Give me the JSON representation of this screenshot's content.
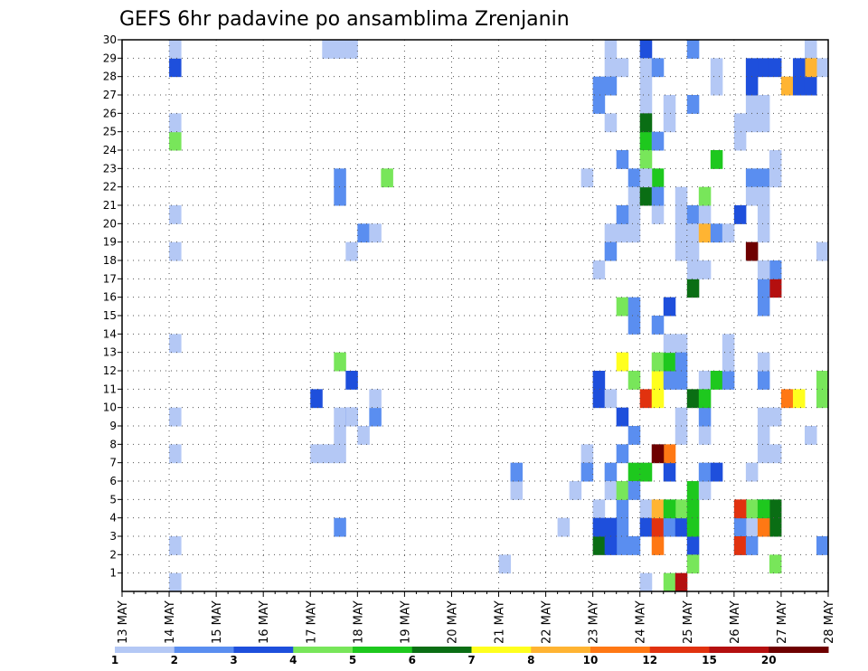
{
  "chart_data": {
    "type": "heatmap",
    "title": "GEFS 6hr padavine po ansamblima Zrenjanin",
    "xlabel": "",
    "ylabel": "",
    "x_range": [
      "13 MAY 00z",
      "28 MAY 00z"
    ],
    "x_step_hours": 6,
    "x_ticks": [
      "13 MAY",
      "14 MAY",
      "15 MAY",
      "16 MAY",
      "17 MAY",
      "18 MAY",
      "19 MAY",
      "20 MAY",
      "21 MAY",
      "22 MAY",
      "23 MAY",
      "24 MAY",
      "25 MAY",
      "26 MAY",
      "27 MAY",
      "28 MAY"
    ],
    "y_ticks": [
      1,
      2,
      3,
      4,
      5,
      6,
      7,
      8,
      9,
      10,
      11,
      12,
      13,
      14,
      15,
      16,
      17,
      18,
      19,
      20,
      21,
      22,
      23,
      24,
      25,
      26,
      27,
      28,
      29,
      30
    ],
    "ylim": [
      0,
      30
    ],
    "grid": true,
    "legend": {
      "placement": "bottom",
      "labels": [
        "1",
        "2",
        "3",
        "4",
        "5",
        "6",
        "7",
        "8",
        "10",
        "12",
        "15",
        "20"
      ],
      "colors": [
        "#b4c8f5",
        "#5a8ef0",
        "#1e4fdc",
        "#78e65a",
        "#1ec81e",
        "#0a6e14",
        "#ffff1e",
        "#ffb432",
        "#ff7814",
        "#e1320f",
        "#b40f0f",
        "#6e0000"
      ]
    },
    "cell_note": "each cell: member, day offset from 13 MAY 00z, 6h step index, category index into legend colors (0 = 1-2 mm)",
    "cells": [
      [
        0,
        1,
        0,
        0
      ],
      [
        2,
        1,
        0,
        0
      ],
      [
        7,
        1,
        0,
        0
      ],
      [
        9,
        1,
        0,
        0
      ],
      [
        13,
        1,
        0,
        0
      ],
      [
        18,
        1,
        0,
        0
      ],
      [
        20,
        1,
        0,
        0
      ],
      [
        24,
        1,
        0,
        3
      ],
      [
        25,
        1,
        0,
        0
      ],
      [
        28,
        1,
        0,
        2
      ],
      [
        29,
        1,
        0,
        0
      ],
      [
        7,
        4,
        0,
        0
      ],
      [
        7,
        4,
        1,
        0
      ],
      [
        10,
        4,
        0,
        2
      ],
      [
        9,
        4,
        2,
        0
      ],
      [
        8,
        4,
        2,
        0
      ],
      [
        3,
        4,
        2,
        1
      ],
      [
        7,
        4,
        2,
        0
      ],
      [
        12,
        4,
        2,
        3
      ],
      [
        9,
        4,
        3,
        2
      ],
      [
        11,
        4,
        3,
        2
      ],
      [
        9,
        4,
        3,
        0
      ],
      [
        18,
        4,
        3,
        0
      ],
      [
        21,
        4,
        2,
        1
      ],
      [
        22,
        4,
        2,
        1
      ],
      [
        29,
        4,
        3,
        0
      ],
      [
        29,
        4,
        2,
        0
      ],
      [
        29,
        4,
        1,
        0
      ],
      [
        8,
        5,
        0,
        0
      ],
      [
        9,
        5,
        1,
        1
      ],
      [
        10,
        5,
        1,
        0
      ],
      [
        19,
        5,
        0,
        1
      ],
      [
        19,
        5,
        1,
        0
      ],
      [
        22,
        5,
        2,
        3
      ],
      [
        1,
        8,
        0,
        0
      ],
      [
        5,
        8,
        1,
        0
      ],
      [
        6,
        8,
        1,
        1
      ],
      [
        3,
        9,
        1,
        0
      ],
      [
        7,
        9,
        3,
        0
      ],
      [
        22,
        9,
        3,
        0
      ],
      [
        6,
        9,
        3,
        1
      ],
      [
        5,
        9,
        2,
        0
      ],
      [
        4,
        10,
        0,
        0
      ],
      [
        19,
        10,
        1,
        0
      ],
      [
        29,
        10,
        1,
        0
      ],
      [
        28,
        10,
        2,
        0
      ],
      [
        3,
        10,
        2,
        1
      ],
      [
        2,
        10,
        2,
        1
      ],
      [
        2,
        10,
        3,
        1
      ],
      [
        8,
        10,
        3,
        1
      ],
      [
        7,
        10,
        2,
        1
      ],
      [
        6,
        10,
        1,
        1
      ],
      [
        5,
        10,
        1,
        0
      ],
      [
        4,
        10,
        2,
        1
      ],
      [
        9,
        10,
        2,
        2
      ],
      [
        22,
        10,
        3,
        1
      ],
      [
        21,
        10,
        3,
        0
      ],
      [
        20,
        10,
        3,
        0
      ],
      [
        12,
        10,
        2,
        6
      ],
      [
        14,
        10,
        3,
        1
      ],
      [
        15,
        10,
        2,
        3
      ],
      [
        18,
        10,
        1,
        1
      ],
      [
        19,
        10,
        2,
        0
      ],
      [
        19,
        10,
        3,
        0
      ],
      [
        20,
        10,
        2,
        1
      ],
      [
        25,
        10,
        1,
        0
      ],
      [
        28,
        10,
        1,
        0
      ],
      [
        27,
        10,
        0,
        1
      ],
      [
        27,
        10,
        1,
        1
      ],
      [
        26,
        10,
        0,
        1
      ],
      [
        17,
        10,
        0,
        0
      ],
      [
        5,
        10,
        2,
        3
      ],
      [
        6,
        10,
        3,
        4
      ],
      [
        15,
        10,
        3,
        1
      ],
      [
        10,
        10,
        0,
        2
      ],
      [
        11,
        10,
        0,
        2
      ],
      [
        2,
        10,
        0,
        5
      ],
      [
        3,
        10,
        0,
        2
      ],
      [
        3,
        10,
        1,
        2
      ],
      [
        2,
        10,
        1,
        2
      ],
      [
        5,
        10,
        3,
        1
      ],
      [
        10,
        10,
        1,
        0
      ],
      [
        23,
        10,
        2,
        1
      ],
      [
        11,
        10,
        3,
        3
      ],
      [
        0,
        11,
        0,
        0
      ],
      [
        13,
        11,
        3,
        0
      ],
      [
        29,
        11,
        0,
        2
      ],
      [
        6,
        11,
        0,
        4
      ],
      [
        4,
        11,
        0,
        0
      ],
      [
        3,
        11,
        0,
        2
      ],
      [
        2,
        11,
        1,
        8
      ],
      [
        3,
        11,
        1,
        9
      ],
      [
        4,
        11,
        1,
        7
      ],
      [
        24,
        11,
        0,
        4
      ],
      [
        26,
        11,
        0,
        0
      ],
      [
        27,
        11,
        0,
        0
      ],
      [
        28,
        11,
        0,
        0
      ],
      [
        28,
        11,
        1,
        1
      ],
      [
        11,
        11,
        1,
        6
      ],
      [
        12,
        11,
        1,
        3
      ],
      [
        11,
        11,
        2,
        1
      ],
      [
        12,
        11,
        2,
        4
      ],
      [
        11,
        11,
        3,
        1
      ],
      [
        12,
        11,
        3,
        1
      ],
      [
        8,
        11,
        3,
        0
      ],
      [
        9,
        11,
        3,
        0
      ],
      [
        10,
        11,
        0,
        9
      ],
      [
        10,
        11,
        1,
        6
      ],
      [
        21,
        11,
        0,
        5
      ],
      [
        23,
        11,
        0,
        3
      ],
      [
        22,
        11,
        1,
        4
      ],
      [
        25,
        11,
        0,
        5
      ],
      [
        24,
        11,
        1,
        1
      ],
      [
        20,
        11,
        1,
        0
      ],
      [
        22,
        11,
        0,
        0
      ],
      [
        6,
        11,
        2,
        2
      ],
      [
        7,
        11,
        2,
        8
      ],
      [
        7,
        11,
        1,
        11
      ],
      [
        25,
        11,
        2,
        0
      ],
      [
        0,
        11,
        2,
        3
      ],
      [
        0,
        11,
        3,
        10
      ],
      [
        3,
        11,
        2,
        1
      ],
      [
        3,
        11,
        3,
        2
      ],
      [
        4,
        11,
        3,
        3
      ],
      [
        4,
        11,
        2,
        4
      ],
      [
        18,
        11,
        3,
        0
      ],
      [
        19,
        11,
        3,
        0
      ],
      [
        21,
        11,
        1,
        1
      ],
      [
        21,
        11,
        3,
        0
      ],
      [
        20,
        11,
        3,
        0
      ],
      [
        15,
        11,
        2,
        2
      ],
      [
        14,
        11,
        1,
        1
      ],
      [
        13,
        11,
        2,
        0
      ],
      [
        26,
        11,
        2,
        0
      ],
      [
        20,
        12,
        0,
        1
      ],
      [
        10,
        12,
        0,
        5
      ],
      [
        2,
        12,
        0,
        2
      ],
      [
        1,
        12,
        0,
        3
      ],
      [
        3,
        12,
        0,
        4
      ],
      [
        4,
        12,
        0,
        4
      ],
      [
        5,
        12,
        0,
        4
      ],
      [
        5,
        12,
        1,
        0
      ],
      [
        6,
        12,
        1,
        1
      ],
      [
        6,
        12,
        2,
        2
      ],
      [
        8,
        12,
        1,
        0
      ],
      [
        9,
        12,
        1,
        1
      ],
      [
        11,
        12,
        1,
        0
      ],
      [
        10,
        12,
        1,
        4
      ],
      [
        11,
        12,
        2,
        4
      ],
      [
        11,
        12,
        3,
        1
      ],
      [
        12,
        12,
        3,
        0
      ],
      [
        13,
        12,
        3,
        0
      ],
      [
        16,
        12,
        0,
        5
      ],
      [
        17,
        12,
        0,
        0
      ],
      [
        17,
        12,
        1,
        0
      ],
      [
        18,
        12,
        0,
        0
      ],
      [
        19,
        12,
        0,
        0
      ],
      [
        20,
        12,
        1,
        0
      ],
      [
        19,
        12,
        1,
        7
      ],
      [
        19,
        12,
        2,
        1
      ],
      [
        19,
        12,
        3,
        0
      ],
      [
        21,
        12,
        1,
        3
      ],
      [
        23,
        12,
        2,
        4
      ],
      [
        26,
        12,
        0,
        1
      ],
      [
        27,
        12,
        2,
        0
      ],
      [
        28,
        12,
        2,
        0
      ],
      [
        29,
        12,
        0,
        1
      ],
      [
        2,
        13,
        0,
        1
      ],
      [
        3,
        13,
        1,
        0
      ],
      [
        6,
        13,
        1,
        0
      ],
      [
        7,
        13,
        2,
        0
      ],
      [
        7,
        13,
        3,
        0
      ],
      [
        8,
        13,
        2,
        0
      ],
      [
        9,
        13,
        2,
        0
      ],
      [
        9,
        13,
        3,
        0
      ],
      [
        16,
        13,
        3,
        10
      ],
      [
        20,
        13,
        0,
        2
      ],
      [
        22,
        13,
        1,
        1
      ],
      [
        22,
        13,
        2,
        1
      ],
      [
        4,
        13,
        2,
        2
      ],
      [
        4,
        13,
        1,
        3
      ],
      [
        4,
        13,
        3,
        5
      ],
      [
        3,
        13,
        3,
        5
      ],
      [
        3,
        13,
        2,
        8
      ],
      [
        1,
        13,
        3,
        3
      ],
      [
        21,
        13,
        1,
        0
      ],
      [
        25,
        13,
        1,
        0
      ],
      [
        26,
        13,
        1,
        0
      ],
      [
        24,
        13,
        0,
        0
      ],
      [
        25,
        13,
        0,
        0
      ],
      [
        27,
        13,
        1,
        2
      ],
      [
        28,
        13,
        2,
        2
      ],
      [
        28,
        13,
        3,
        2
      ],
      [
        28,
        13,
        1,
        2
      ],
      [
        3,
        13,
        0,
        1
      ],
      [
        4,
        13,
        0,
        9
      ],
      [
        2,
        13,
        0,
        9
      ],
      [
        2,
        13,
        1,
        1
      ],
      [
        11,
        13,
        2,
        1
      ],
      [
        12,
        13,
        2,
        0
      ],
      [
        17,
        13,
        3,
        1
      ],
      [
        16,
        13,
        2,
        1
      ],
      [
        15,
        13,
        2,
        1
      ],
      [
        17,
        13,
        2,
        0
      ],
      [
        18,
        13,
        1,
        11
      ],
      [
        19,
        13,
        2,
        0
      ],
      [
        25,
        13,
        2,
        0
      ],
      [
        26,
        13,
        2,
        0
      ],
      [
        20,
        13,
        2,
        0
      ],
      [
        21,
        13,
        2,
        0
      ],
      [
        22,
        13,
        3,
        0
      ],
      [
        23,
        13,
        3,
        0
      ],
      [
        4,
        13,
        2,
        4
      ],
      [
        28,
        14,
        3,
        0
      ],
      [
        29,
        14,
        2,
        0
      ],
      [
        18,
        14,
        3,
        0
      ],
      [
        2,
        14,
        3,
        1
      ],
      [
        11,
        14,
        3,
        3
      ],
      [
        10,
        14,
        3,
        3
      ],
      [
        8,
        14,
        2,
        0
      ],
      [
        27,
        14,
        0,
        7
      ],
      [
        27,
        14,
        1,
        2
      ],
      [
        27,
        14,
        2,
        2
      ],
      [
        28,
        14,
        2,
        7
      ],
      [
        28,
        14,
        1,
        2
      ],
      [
        10,
        14,
        0,
        8
      ],
      [
        10,
        14,
        1,
        6
      ]
    ]
  }
}
